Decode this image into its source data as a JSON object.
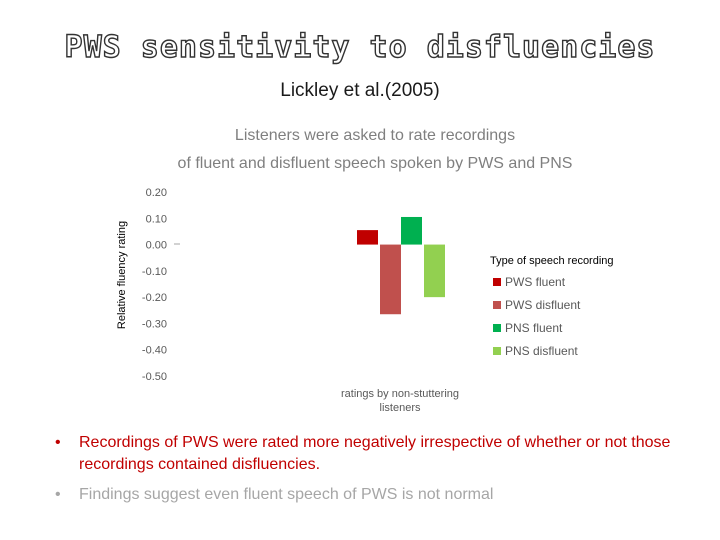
{
  "slide": {
    "title": "PWS sensitivity to disfluencies",
    "subtitle": "Lickley et al.(2005)",
    "description_line1": "Listeners were asked to rate recordings",
    "description_line2": "of fluent and disfluent speech spoken by PWS and PNS"
  },
  "bullets": [
    {
      "marker": "•",
      "text": "Recordings of PWS were rated more negatively irrespective of whether or not those recordings contained disfluencies."
    },
    {
      "marker": "•",
      "text": "Findings suggest even fluent speech of PWS is not normal"
    }
  ],
  "colors": {
    "pws_fluent": "#c00000",
    "pws_disfluent": "#c0504d",
    "pns_fluent": "#00b050",
    "pns_disfluent": "#92d050"
  },
  "chart_data": {
    "type": "bar",
    "ylabel": "Relative fluency rating",
    "xlabel": "ratings by non-stuttering listeners",
    "ylim": [
      -0.5,
      0.2
    ],
    "yticks": [
      "0.20",
      "0.10",
      "0.00",
      "-0.10",
      "-0.20",
      "-0.30",
      "-0.40",
      "-0.50"
    ],
    "ytick_values": [
      0.2,
      0.1,
      0.0,
      -0.1,
      -0.2,
      -0.3,
      -0.4,
      -0.5
    ],
    "grid": false,
    "legend_title": "Type of speech recording",
    "legend_position": "right",
    "series": [
      {
        "name": "PWS fluent",
        "value": 0.055,
        "color": "#c00000"
      },
      {
        "name": "PWS  disfluent",
        "value": -0.265,
        "color": "#c0504d"
      },
      {
        "name": "PNS fluent",
        "value": 0.105,
        "color": "#00b050"
      },
      {
        "name": "PNS disfluent",
        "value": -0.2,
        "color": "#92d050"
      }
    ]
  }
}
